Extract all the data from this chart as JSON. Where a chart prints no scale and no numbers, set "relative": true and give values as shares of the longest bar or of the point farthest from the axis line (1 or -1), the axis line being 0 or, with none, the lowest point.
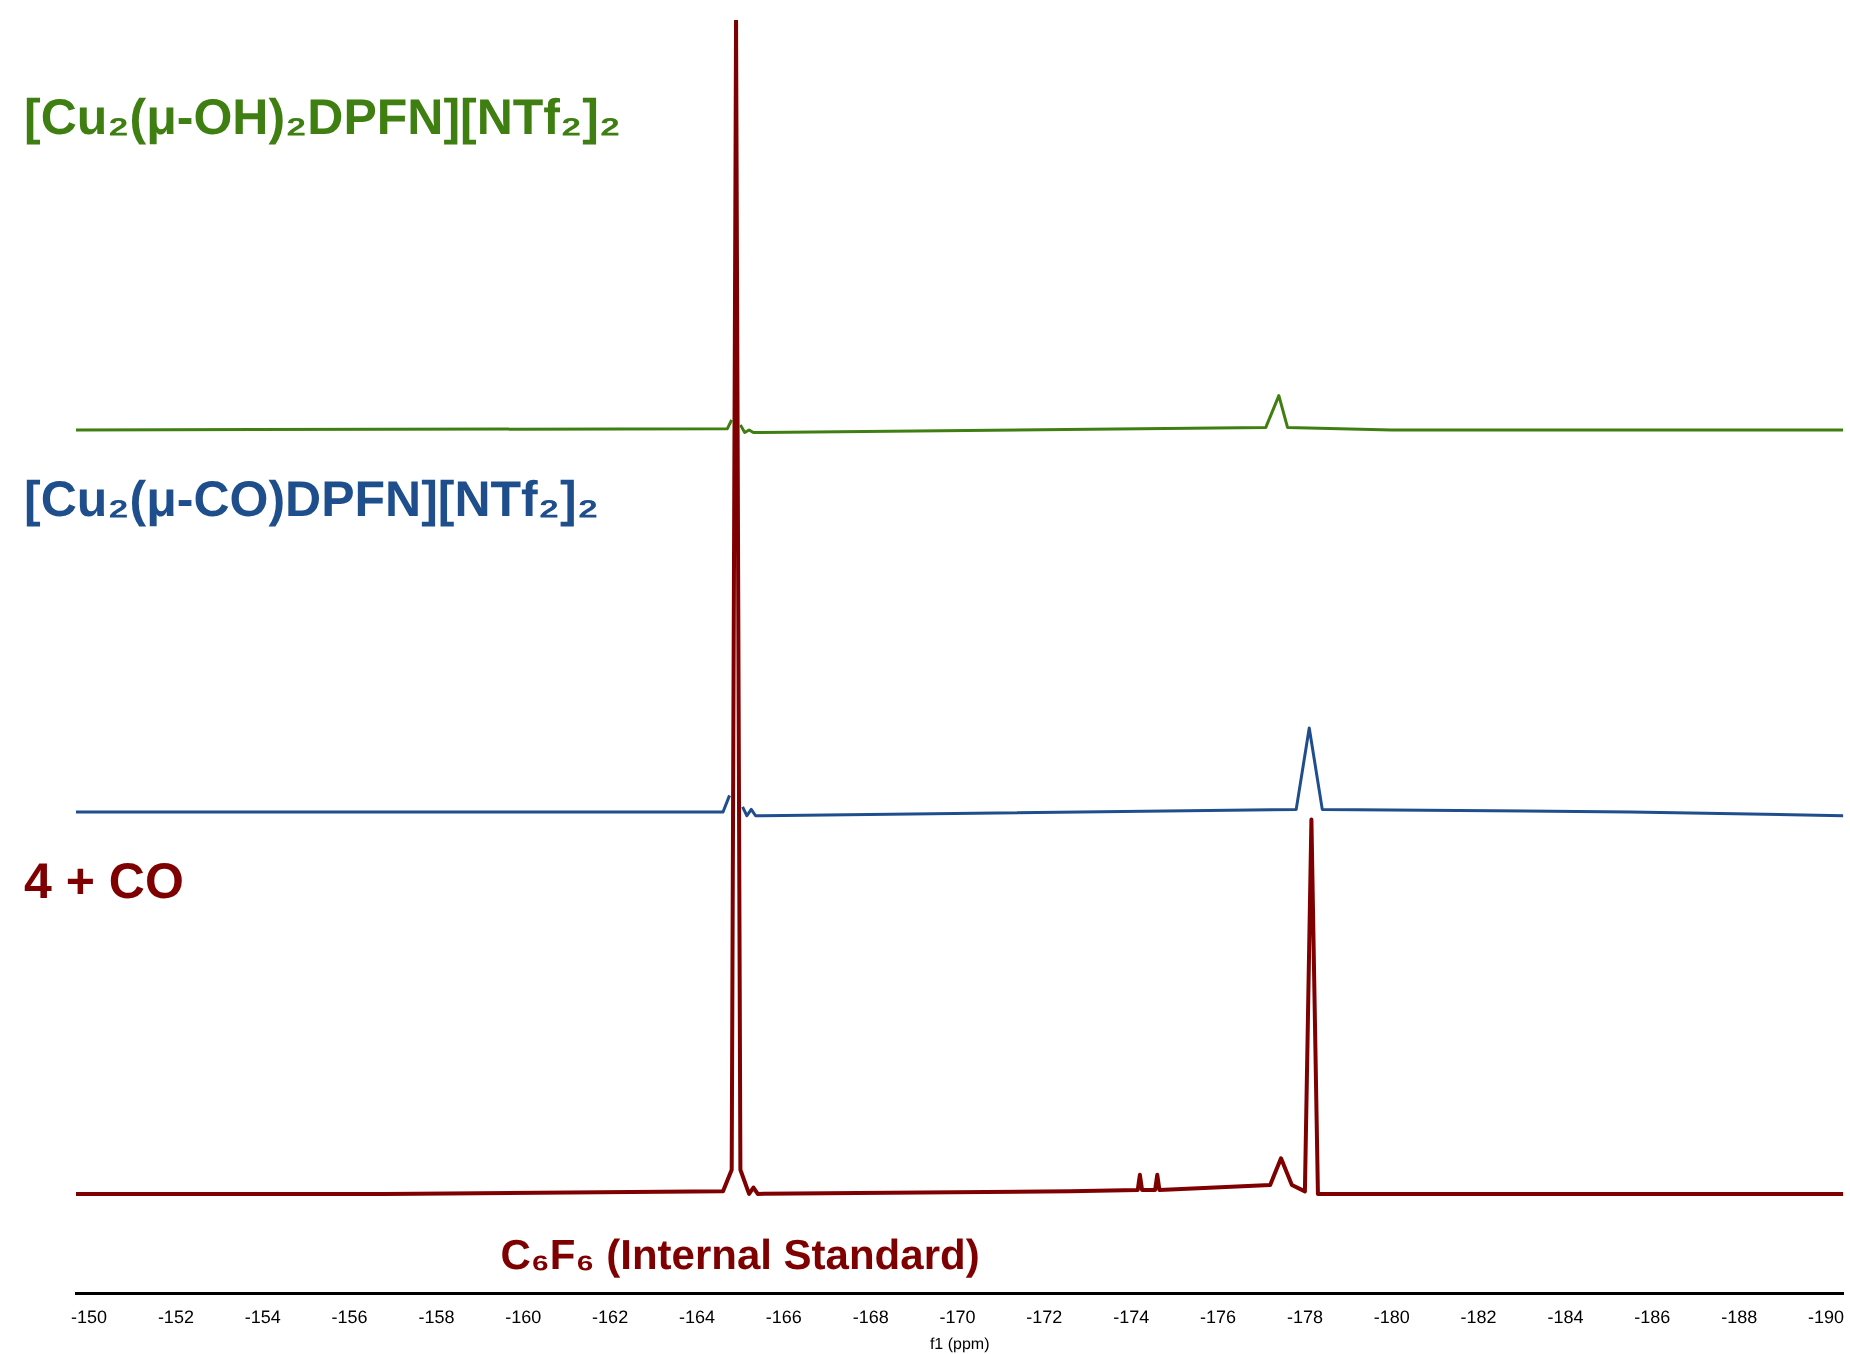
{
  "chart_data": {
    "type": "line",
    "relative": true,
    "xlabel": "f1 (ppm)",
    "xlim": [
      -149.7,
      -190.4
    ],
    "xticks": [
      -150,
      -152,
      -154,
      -156,
      -158,
      -160,
      -162,
      -164,
      -166,
      -168,
      -170,
      -172,
      -174,
      -176,
      -178,
      -180,
      -182,
      -184,
      -186,
      -188,
      -190
    ],
    "grid": false,
    "legend": false,
    "marker": "none",
    "line_style": "solid",
    "annotations": [
      "C₆F₆ (Internal Standard)"
    ],
    "series": [
      {
        "name": "[Cu₂(μ-OH)₂DPFN][NTf₂]₂",
        "color": "#3f7f12",
        "x": [
          -149.7,
          -164.7,
          -164.8,
          -164.9,
          -165.0,
          -165.1,
          -165.2,
          -165.3,
          -177.1,
          -177.4,
          -177.6,
          -180,
          -190.4
        ],
        "values": [
          0.678,
          0.679,
          0.686,
          null,
          0.682,
          0.676,
          0.678,
          0.676,
          0.68,
          0.705,
          0.68,
          0.678,
          0.678
        ]
      },
      {
        "name": "[Cu₂(μ-CO)DPFN][NTf₂]₂",
        "color": "#1f4e8c",
        "x": [
          -149.7,
          -164.6,
          -164.75,
          -164.9,
          -165.05,
          -165.15,
          -165.25,
          -165.35,
          -177.8,
          -178.1,
          -178.4,
          -185.5,
          -190.4
        ],
        "values": [
          0.378,
          0.378,
          0.391,
          null,
          0.382,
          0.375,
          0.38,
          0.375,
          0.38,
          0.444,
          0.38,
          0.378,
          0.375
        ]
      },
      {
        "name": "4 + CO",
        "color": "#7f0000",
        "x": [
          -149.7,
          -156.8,
          -164.6,
          -164.8,
          -164.9,
          -165.0,
          -165.2,
          -165.3,
          -165.4,
          -172.6,
          -174.15,
          -174.2,
          -174.25,
          -174.55,
          -174.6,
          -174.65,
          -177.2,
          -177.45,
          -177.7,
          -178.0,
          -178.15,
          -178.3,
          -190.4
        ],
        "values": [
          0.078,
          0.078,
          0.08,
          0.097,
          1,
          0.097,
          0.078,
          0.083,
          0.078,
          0.08,
          0.081,
          0.093,
          0.081,
          0.081,
          0.093,
          0.081,
          0.085,
          0.106,
          0.085,
          0.08,
          0.372,
          0.078,
          0.078
        ]
      }
    ]
  }
}
